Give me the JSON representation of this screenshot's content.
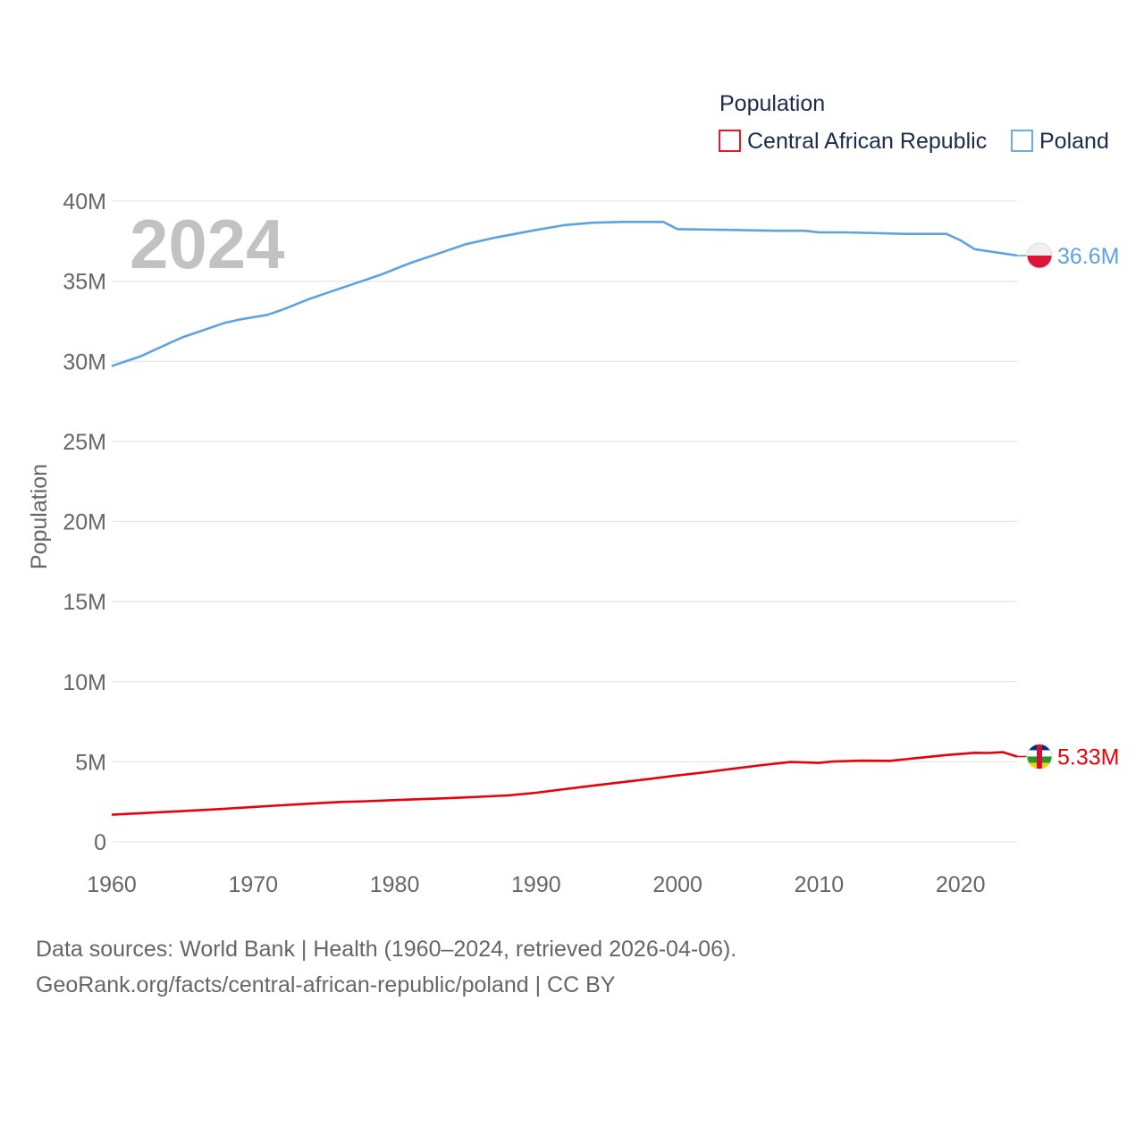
{
  "chart_data": {
    "type": "line",
    "year_overlay": "2024",
    "ylabel": "Population",
    "xlabel": "",
    "xlim": [
      1960,
      2024
    ],
    "ylim": [
      0,
      40000000
    ],
    "y_ticks": [
      {
        "value": 0,
        "label": "0"
      },
      {
        "value": 5000000,
        "label": "5M"
      },
      {
        "value": 10000000,
        "label": "10M"
      },
      {
        "value": 15000000,
        "label": "15M"
      },
      {
        "value": 20000000,
        "label": "20M"
      },
      {
        "value": 25000000,
        "label": "25M"
      },
      {
        "value": 30000000,
        "label": "30M"
      },
      {
        "value": 35000000,
        "label": "35M"
      },
      {
        "value": 40000000,
        "label": "40M"
      }
    ],
    "x_ticks": [
      {
        "value": 1960,
        "label": "1960"
      },
      {
        "value": 1970,
        "label": "1970"
      },
      {
        "value": 1980,
        "label": "1980"
      },
      {
        "value": 1990,
        "label": "1990"
      },
      {
        "value": 2000,
        "label": "2000"
      },
      {
        "value": 2010,
        "label": "2010"
      },
      {
        "value": 2020,
        "label": "2020"
      }
    ],
    "legend": {
      "title": "Population",
      "position": "top-right"
    },
    "series": [
      {
        "name": "Central African Republic",
        "color": "#e8000b",
        "end_label": "5.33M",
        "flag_icon": "central-african-republic-flag-icon",
        "x": [
          1960,
          1962,
          1964,
          1966,
          1968,
          1970,
          1972,
          1974,
          1976,
          1978,
          1980,
          1982,
          1984,
          1986,
          1988,
          1990,
          1992,
          1994,
          1996,
          1998,
          2000,
          2002,
          2004,
          2006,
          2008,
          2010,
          2011,
          2013,
          2015,
          2017,
          2019,
          2020,
          2021,
          2022,
          2023,
          2024
        ],
        "values": [
          1700000,
          1790000,
          1880000,
          1970000,
          2070000,
          2180000,
          2290000,
          2390000,
          2490000,
          2540000,
          2610000,
          2670000,
          2740000,
          2820000,
          2900000,
          3070000,
          3290000,
          3510000,
          3720000,
          3930000,
          4150000,
          4350000,
          4580000,
          4800000,
          4990000,
          4930000,
          5020000,
          5070000,
          5060000,
          5240000,
          5420000,
          5490000,
          5560000,
          5550000,
          5600000,
          5330000
        ]
      },
      {
        "name": "Poland",
        "color": "#5ea3e0",
        "end_label": "36.6M",
        "flag_icon": "poland-flag-icon",
        "x": [
          1960,
          1962,
          1964,
          1965,
          1966,
          1968,
          1969,
          1971,
          1972,
          1974,
          1977,
          1979,
          1981,
          1983,
          1985,
          1987,
          1990,
          1992,
          1994,
          1996,
          1998,
          1999,
          2000,
          2004,
          2007,
          2009,
          2010,
          2012,
          2016,
          2019,
          2020,
          2021,
          2024
        ],
        "values": [
          29700000,
          30300000,
          31100000,
          31500000,
          31800000,
          32400000,
          32600000,
          32900000,
          33200000,
          33900000,
          34800000,
          35400000,
          36100000,
          36700000,
          37300000,
          37700000,
          38200000,
          38500000,
          38650000,
          38700000,
          38700000,
          38700000,
          38250000,
          38200000,
          38150000,
          38150000,
          38050000,
          38050000,
          37950000,
          37950000,
          37550000,
          37000000,
          36600000
        ]
      }
    ]
  },
  "footer": {
    "line1": "Data sources: World Bank | Health (1960–2024, retrieved 2026-04-06).",
    "line2": "GeoRank.org/facts/central-african-republic/poland | CC BY"
  }
}
